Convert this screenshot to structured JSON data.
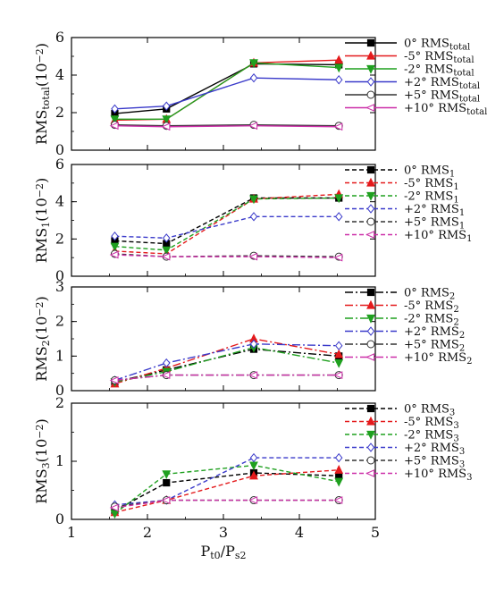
{
  "chart_data": [
    {
      "type": "line",
      "ylabel": "RMS",
      "ylabel_sub": "total",
      "ylabel_unit": "(10",
      "ylabel_exp": "−2",
      "ylabel_close": ")",
      "ylim": [
        0,
        6
      ],
      "yticks": [
        0,
        2,
        4,
        6
      ],
      "line_style": "solid",
      "x": [
        1.57,
        2.25,
        3.4,
        4.52
      ],
      "series": [
        {
          "name": "0° RMS",
          "sub": "total",
          "color": "#000000",
          "marker": "square",
          "values": [
            1.95,
            2.2,
            4.6,
            4.55
          ]
        },
        {
          "name": "-5° RMS",
          "sub": "total",
          "color": "#e41a1c",
          "marker": "triangle-up",
          "values": [
            1.6,
            1.65,
            4.65,
            4.8
          ]
        },
        {
          "name": "-2° RMS",
          "sub": "total",
          "color": "#1fa01f",
          "marker": "triangle-down",
          "values": [
            1.65,
            1.65,
            4.65,
            4.4
          ]
        },
        {
          "name": "+2° RMS",
          "sub": "total",
          "color": "#3a3aca",
          "marker": "diamond",
          "values": [
            2.2,
            2.35,
            3.85,
            3.75
          ]
        },
        {
          "name": "+5° RMS",
          "sub": "total",
          "color": "#333333",
          "marker": "circle",
          "values": [
            1.35,
            1.3,
            1.35,
            1.3
          ]
        },
        {
          "name": "+10° RMS",
          "sub": "total",
          "color": "#cc2fa8",
          "marker": "triangle-left",
          "values": [
            1.3,
            1.25,
            1.3,
            1.25
          ]
        }
      ]
    },
    {
      "type": "line",
      "ylabel": "RMS",
      "ylabel_sub": "1",
      "ylabel_unit": "(10",
      "ylabel_exp": "−2",
      "ylabel_close": ")",
      "ylim": [
        0,
        6
      ],
      "yticks": [
        0,
        2,
        4,
        6
      ],
      "line_style": "dashed",
      "x": [
        1.57,
        2.25,
        3.4,
        4.52
      ],
      "series": [
        {
          "name": "0° RMS",
          "sub": "1",
          "color": "#000000",
          "marker": "square",
          "values": [
            1.9,
            1.75,
            4.2,
            4.2
          ]
        },
        {
          "name": "-5° RMS",
          "sub": "1",
          "color": "#e41a1c",
          "marker": "triangle-up",
          "values": [
            1.35,
            1.2,
            4.15,
            4.4
          ]
        },
        {
          "name": "-2° RMS",
          "sub": "1",
          "color": "#1fa01f",
          "marker": "triangle-down",
          "values": [
            1.6,
            1.4,
            4.15,
            4.2
          ]
        },
        {
          "name": "+2° RMS",
          "sub": "1",
          "color": "#3a3aca",
          "marker": "diamond",
          "values": [
            2.15,
            2.05,
            3.2,
            3.2
          ]
        },
        {
          "name": "+5° RMS",
          "sub": "1",
          "color": "#333333",
          "marker": "circle",
          "values": [
            1.2,
            1.05,
            1.1,
            1.05
          ]
        },
        {
          "name": "+10° RMS",
          "sub": "1",
          "color": "#cc2fa8",
          "marker": "triangle-left",
          "values": [
            1.15,
            1.05,
            1.05,
            1.0
          ]
        }
      ]
    },
    {
      "type": "line",
      "ylabel": "RMS",
      "ylabel_sub": "2",
      "ylabel_unit": "(10",
      "ylabel_exp": "−2",
      "ylabel_close": ")",
      "ylim": [
        0,
        3
      ],
      "yticks": [
        0,
        1,
        2,
        3
      ],
      "line_style": "dashdot",
      "x": [
        1.57,
        2.25,
        3.4,
        4.52
      ],
      "series": [
        {
          "name": "0° RMS",
          "sub": "2",
          "color": "#000000",
          "marker": "square",
          "values": [
            0.25,
            0.6,
            1.2,
            1.0
          ]
        },
        {
          "name": "-5° RMS",
          "sub": "2",
          "color": "#e41a1c",
          "marker": "triangle-up",
          "values": [
            0.2,
            0.65,
            1.5,
            1.05
          ]
        },
        {
          "name": "-2° RMS",
          "sub": "2",
          "color": "#1fa01f",
          "marker": "triangle-down",
          "values": [
            0.25,
            0.55,
            1.25,
            0.8
          ]
        },
        {
          "name": "+2° RMS",
          "sub": "2",
          "color": "#3a3aca",
          "marker": "diamond",
          "values": [
            0.3,
            0.8,
            1.35,
            1.3
          ]
        },
        {
          "name": "+5° RMS",
          "sub": "2",
          "color": "#333333",
          "marker": "circle",
          "values": [
            0.3,
            0.45,
            0.45,
            0.45
          ]
        },
        {
          "name": "+10° RMS",
          "sub": "2",
          "color": "#cc2fa8",
          "marker": "triangle-left",
          "values": [
            0.3,
            0.45,
            0.45,
            0.45
          ]
        }
      ]
    },
    {
      "type": "line",
      "ylabel": "RMS",
      "ylabel_sub": "3",
      "ylabel_unit": "(10",
      "ylabel_exp": "−2",
      "ylabel_close": ")",
      "ylim": [
        0,
        2
      ],
      "yticks": [
        0,
        1,
        2
      ],
      "line_style": "dashed",
      "x": [
        1.57,
        2.25,
        3.4,
        4.52
      ],
      "xlabel": "P",
      "xlabel_sub1": "t0",
      "xlabel_mid": "/P",
      "xlabel_sub2": "s2",
      "xlim": [
        1,
        5
      ],
      "xticks": [
        1,
        2,
        3,
        4,
        5
      ],
      "series": [
        {
          "name": "0° RMS",
          "sub": "3",
          "color": "#000000",
          "marker": "square",
          "values": [
            0.15,
            0.63,
            0.8,
            0.75
          ]
        },
        {
          "name": "-5° RMS",
          "sub": "3",
          "color": "#e41a1c",
          "marker": "triangle-up",
          "values": [
            0.12,
            0.33,
            0.75,
            0.85
          ]
        },
        {
          "name": "-2° RMS",
          "sub": "3",
          "color": "#1fa01f",
          "marker": "triangle-down",
          "values": [
            0.1,
            0.78,
            0.93,
            0.65
          ]
        },
        {
          "name": "+2° RMS",
          "sub": "3",
          "color": "#3a3aca",
          "marker": "diamond",
          "values": [
            0.25,
            0.33,
            1.06,
            1.06
          ]
        },
        {
          "name": "+5° RMS",
          "sub": "3",
          "color": "#333333",
          "marker": "circle",
          "values": [
            0.22,
            0.33,
            0.33,
            0.33
          ]
        },
        {
          "name": "+10° RMS",
          "sub": "3",
          "color": "#cc2fa8",
          "marker": "triangle-left",
          "values": [
            0.2,
            0.33,
            0.33,
            0.33
          ]
        }
      ]
    }
  ]
}
